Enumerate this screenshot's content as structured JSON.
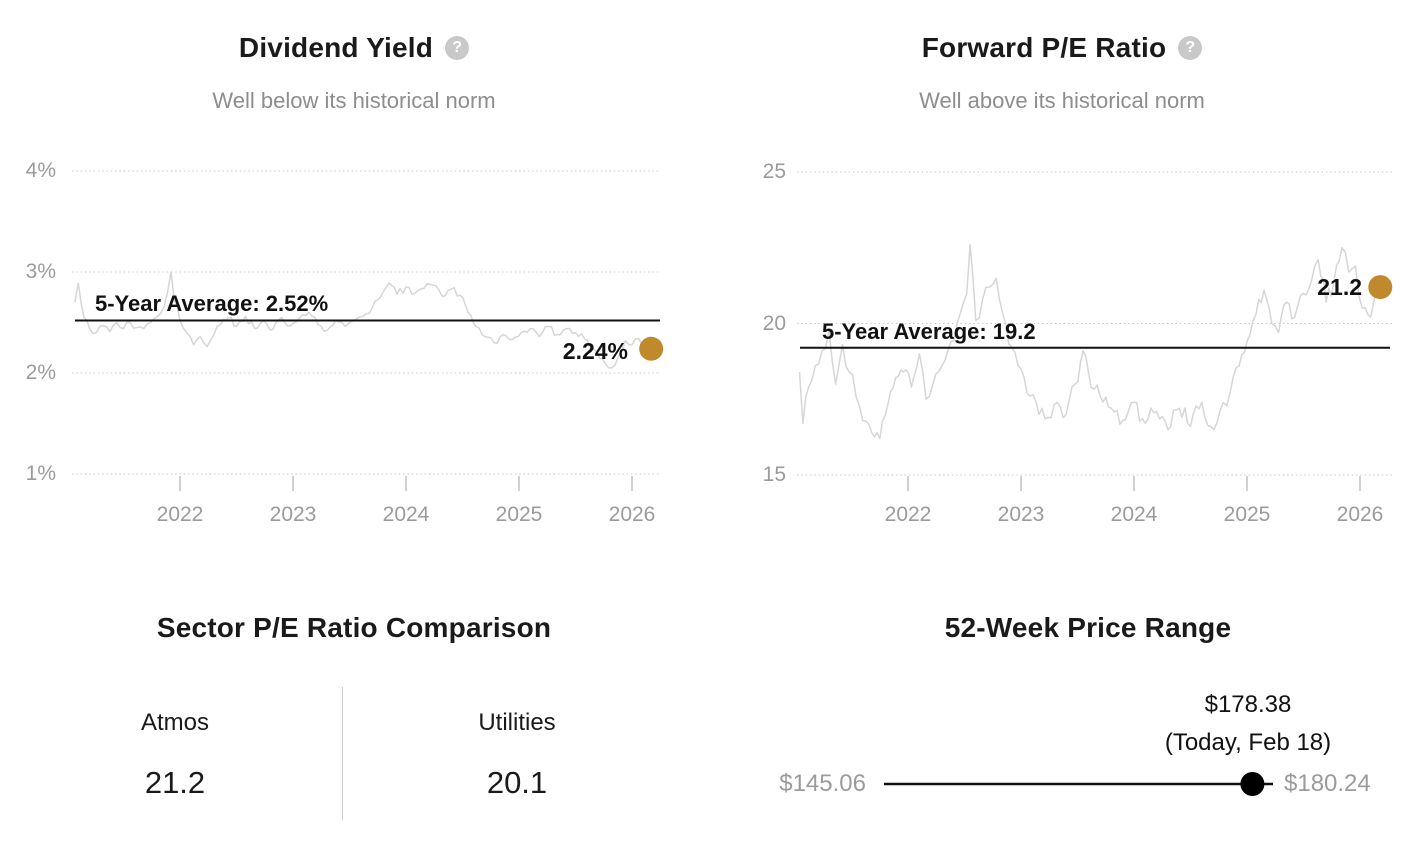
{
  "colors": {
    "gold": "#C08A2C",
    "series_gray": "#d6d6d6",
    "grid_gray": "#c9c9c9",
    "tick_gray": "#d0d0d0",
    "average_black": "#111111",
    "text_dark": "#1a1a1a",
    "text_gray": "#8d8d8d",
    "axis_gray": "#9b9b9b"
  },
  "help_icon": {
    "glyph": "?"
  },
  "chart_data": [
    {
      "type": "line",
      "panel": "dividend-yield",
      "title": "Dividend Yield",
      "subtitle": "Well below its historical norm",
      "unit": "%",
      "ylim": [
        1,
        4
      ],
      "grid": "dotted-horizontal",
      "y_ticks": [
        {
          "label": "4%",
          "value": 4
        },
        {
          "label": "3%",
          "value": 3
        },
        {
          "label": "2%",
          "value": 2
        },
        {
          "label": "1%",
          "value": 1
        }
      ],
      "x_ticks": [
        {
          "label": "2022",
          "value": 2022
        },
        {
          "label": "2023",
          "value": 2023
        },
        {
          "label": "2024",
          "value": 2024
        },
        {
          "label": "2025",
          "value": 2025
        },
        {
          "label": "2026",
          "value": 2026
        }
      ],
      "average": {
        "value": 2.52,
        "label": "5-Year Average: 2.52%"
      },
      "current": {
        "value": 2.24,
        "label": "2.24%"
      },
      "series": [
        {
          "name": "Dividend Yield",
          "points": [
            [
              2021.07,
              2.7
            ],
            [
              2021.1,
              2.89
            ],
            [
              2021.15,
              2.55
            ],
            [
              2021.2,
              2.44
            ],
            [
              2021.26,
              2.4
            ],
            [
              2021.32,
              2.47
            ],
            [
              2021.38,
              2.41
            ],
            [
              2021.44,
              2.5
            ],
            [
              2021.5,
              2.44
            ],
            [
              2021.56,
              2.5
            ],
            [
              2021.62,
              2.45
            ],
            [
              2021.68,
              2.44
            ],
            [
              2021.74,
              2.5
            ],
            [
              2021.8,
              2.56
            ],
            [
              2021.86,
              2.66
            ],
            [
              2021.89,
              2.8
            ],
            [
              2021.92,
              3.0
            ],
            [
              2021.95,
              2.72
            ],
            [
              2022.0,
              2.52
            ],
            [
              2022.06,
              2.4
            ],
            [
              2022.12,
              2.28
            ],
            [
              2022.18,
              2.36
            ],
            [
              2022.24,
              2.26
            ],
            [
              2022.3,
              2.38
            ],
            [
              2022.36,
              2.48
            ],
            [
              2022.43,
              2.55
            ],
            [
              2022.5,
              2.46
            ],
            [
              2022.58,
              2.56
            ],
            [
              2022.66,
              2.44
            ],
            [
              2022.74,
              2.52
            ],
            [
              2022.82,
              2.43
            ],
            [
              2022.9,
              2.55
            ],
            [
              2022.98,
              2.47
            ],
            [
              2023.06,
              2.55
            ],
            [
              2023.14,
              2.6
            ],
            [
              2023.22,
              2.48
            ],
            [
              2023.3,
              2.42
            ],
            [
              2023.38,
              2.52
            ],
            [
              2023.46,
              2.46
            ],
            [
              2023.54,
              2.52
            ],
            [
              2023.62,
              2.56
            ],
            [
              2023.7,
              2.64
            ],
            [
              2023.78,
              2.76
            ],
            [
              2023.85,
              2.89
            ],
            [
              2023.92,
              2.78
            ],
            [
              2024.0,
              2.85
            ],
            [
              2024.08,
              2.79
            ],
            [
              2024.16,
              2.84
            ],
            [
              2024.24,
              2.87
            ],
            [
              2024.32,
              2.76
            ],
            [
              2024.4,
              2.83
            ],
            [
              2024.48,
              2.77
            ],
            [
              2024.55,
              2.6
            ],
            [
              2024.62,
              2.46
            ],
            [
              2024.7,
              2.36
            ],
            [
              2024.78,
              2.3
            ],
            [
              2024.86,
              2.38
            ],
            [
              2024.94,
              2.33
            ],
            [
              2025.02,
              2.4
            ],
            [
              2025.1,
              2.44
            ],
            [
              2025.18,
              2.36
            ],
            [
              2025.26,
              2.46
            ],
            [
              2025.34,
              2.38
            ],
            [
              2025.42,
              2.44
            ],
            [
              2025.5,
              2.4
            ],
            [
              2025.58,
              2.34
            ],
            [
              2025.66,
              2.24
            ],
            [
              2025.74,
              2.14
            ],
            [
              2025.82,
              2.05
            ],
            [
              2025.88,
              2.16
            ],
            [
              2025.94,
              2.32
            ],
            [
              2026.0,
              2.28
            ],
            [
              2026.06,
              2.34
            ],
            [
              2026.11,
              2.3
            ],
            [
              2026.17,
              2.24
            ]
          ]
        }
      ]
    },
    {
      "type": "line",
      "panel": "forward-pe-ratio",
      "title": "Forward P/E Ratio",
      "subtitle": "Well above its historical norm",
      "unit": "",
      "ylim": [
        15,
        25
      ],
      "grid": "dotted-horizontal",
      "y_ticks": [
        {
          "label": "25",
          "value": 25
        },
        {
          "label": "20",
          "value": 20
        },
        {
          "label": "15",
          "value": 15
        }
      ],
      "x_ticks": [
        {
          "label": "2022",
          "value": 2022
        },
        {
          "label": "2023",
          "value": 2023
        },
        {
          "label": "2024",
          "value": 2024
        },
        {
          "label": "2025",
          "value": 2025
        },
        {
          "label": "2026",
          "value": 2026
        }
      ],
      "average": {
        "value": 19.2,
        "label": "5-Year Average: 19.2"
      },
      "current": {
        "value": 21.2,
        "label": "21.2"
      },
      "series": [
        {
          "name": "Forward P/E Ratio",
          "points": [
            [
              2021.04,
              18.4
            ],
            [
              2021.07,
              16.7
            ],
            [
              2021.12,
              17.9
            ],
            [
              2021.18,
              18.6
            ],
            [
              2021.24,
              19.1
            ],
            [
              2021.3,
              19.8
            ],
            [
              2021.36,
              18.0
            ],
            [
              2021.42,
              19.3
            ],
            [
              2021.48,
              18.4
            ],
            [
              2021.54,
              17.6
            ],
            [
              2021.6,
              16.8
            ],
            [
              2021.68,
              16.4
            ],
            [
              2021.75,
              16.2
            ],
            [
              2021.82,
              17.3
            ],
            [
              2021.89,
              18.2
            ],
            [
              2021.96,
              18.4
            ],
            [
              2022.03,
              17.9
            ],
            [
              2022.1,
              19.0
            ],
            [
              2022.16,
              17.5
            ],
            [
              2022.22,
              18.0
            ],
            [
              2022.3,
              18.6
            ],
            [
              2022.38,
              19.4
            ],
            [
              2022.46,
              20.3
            ],
            [
              2022.52,
              21.0
            ],
            [
              2022.55,
              22.6
            ],
            [
              2022.6,
              20.1
            ],
            [
              2022.66,
              20.8
            ],
            [
              2022.72,
              21.2
            ],
            [
              2022.78,
              21.5
            ],
            [
              2022.84,
              20.3
            ],
            [
              2022.92,
              19.2
            ],
            [
              2023.0,
              18.5
            ],
            [
              2023.08,
              17.6
            ],
            [
              2023.16,
              17.0
            ],
            [
              2023.24,
              16.9
            ],
            [
              2023.32,
              17.4
            ],
            [
              2023.4,
              17.0
            ],
            [
              2023.48,
              18.0
            ],
            [
              2023.55,
              19.1
            ],
            [
              2023.62,
              17.9
            ],
            [
              2023.7,
              17.6
            ],
            [
              2023.8,
              17.2
            ],
            [
              2023.9,
              16.8
            ],
            [
              2024.0,
              17.4
            ],
            [
              2024.1,
              16.7
            ],
            [
              2024.2,
              17.1
            ],
            [
              2024.3,
              16.5
            ],
            [
              2024.4,
              17.2
            ],
            [
              2024.5,
              16.6
            ],
            [
              2024.6,
              17.4
            ],
            [
              2024.68,
              16.6
            ],
            [
              2024.76,
              17.1
            ],
            [
              2024.85,
              17.7
            ],
            [
              2024.93,
              18.6
            ],
            [
              2025.0,
              19.4
            ],
            [
              2025.08,
              20.3
            ],
            [
              2025.15,
              21.1
            ],
            [
              2025.22,
              20.0
            ],
            [
              2025.28,
              19.7
            ],
            [
              2025.35,
              20.7
            ],
            [
              2025.42,
              20.2
            ],
            [
              2025.5,
              21.0
            ],
            [
              2025.57,
              21.4
            ],
            [
              2025.63,
              22.1
            ],
            [
              2025.7,
              20.7
            ],
            [
              2025.77,
              21.4
            ],
            [
              2025.84,
              22.5
            ],
            [
              2025.9,
              21.7
            ],
            [
              2025.96,
              21.9
            ],
            [
              2026.02,
              20.5
            ],
            [
              2026.07,
              20.3
            ],
            [
              2026.12,
              20.7
            ],
            [
              2026.18,
              21.2
            ]
          ]
        }
      ]
    },
    {
      "type": "table",
      "panel": "sector-pe-comparison",
      "title": "Sector P/E Ratio Comparison",
      "columns": [
        {
          "label": "Atmos",
          "value": "21.2"
        },
        {
          "label": "Utilities",
          "value": "20.1"
        }
      ]
    },
    {
      "type": "range",
      "panel": "52-week-price-range",
      "title": "52-Week Price Range",
      "low": {
        "value": 145.06,
        "label": "$145.06"
      },
      "high": {
        "value": 180.24,
        "label": "$180.24"
      },
      "current": {
        "value": 178.38,
        "label": "$178.38",
        "sublabel": "(Today, Feb 18)"
      }
    }
  ]
}
